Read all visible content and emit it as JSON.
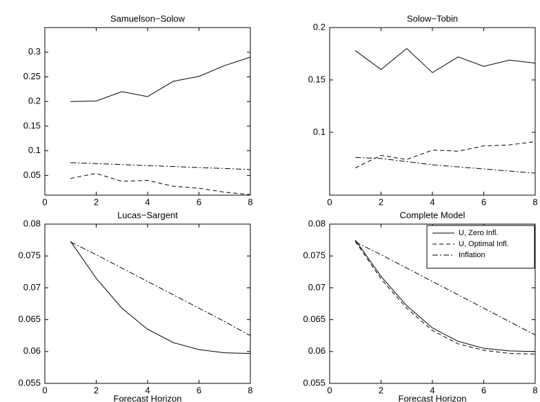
{
  "chart_data": [
    {
      "type": "line",
      "title": "Samuelson−Solow",
      "x": [
        1,
        2,
        3,
        4,
        5,
        6,
        7,
        8
      ],
      "xlim": [
        0,
        8
      ],
      "xticks": [
        0,
        2,
        4,
        6,
        8
      ],
      "ylim": [
        0.01,
        0.35
      ],
      "yticks": [
        0.05,
        0.1,
        0.15,
        0.2,
        0.25,
        0.3
      ],
      "series": [
        {
          "color": "#000000",
          "style": "solid",
          "values": [
            0.2,
            0.201,
            0.22,
            0.21,
            0.241,
            0.251,
            0.273,
            0.29
          ]
        },
        {
          "color": "#000000",
          "style": "dashed",
          "values": [
            0.044,
            0.054,
            0.038,
            0.04,
            0.028,
            0.024,
            0.016,
            0.011
          ]
        },
        {
          "color": "#000000",
          "style": "dashdot",
          "values": [
            0.076,
            0.074,
            0.072,
            0.07,
            0.068,
            0.066,
            0.064,
            0.062
          ]
        }
      ]
    },
    {
      "type": "line",
      "title": "Solow−Tobin",
      "x": [
        1,
        2,
        3,
        4,
        5,
        6,
        7,
        8
      ],
      "xlim": [
        0,
        8
      ],
      "xticks": [
        0,
        2,
        4,
        6,
        8
      ],
      "ylim": [
        0.04,
        0.2
      ],
      "yticks": [
        0.1,
        0.15,
        0.2
      ],
      "series": [
        {
          "color": "#000000",
          "style": "solid",
          "values": [
            0.178,
            0.16,
            0.18,
            0.157,
            0.172,
            0.163,
            0.169,
            0.166
          ]
        },
        {
          "color": "#000000",
          "style": "dashed",
          "values": [
            0.066,
            0.078,
            0.074,
            0.083,
            0.082,
            0.087,
            0.088,
            0.091
          ]
        },
        {
          "color": "#000000",
          "style": "dashdot",
          "values": [
            0.076,
            0.075,
            0.072,
            0.069,
            0.067,
            0.065,
            0.063,
            0.061
          ]
        }
      ]
    },
    {
      "type": "line",
      "title": "Lucas−Sargent",
      "xlabel": "Forecast Horizon",
      "x": [
        1,
        2,
        3,
        4,
        5,
        6,
        7,
        8
      ],
      "xlim": [
        0,
        8
      ],
      "xticks": [
        0,
        2,
        4,
        6,
        8
      ],
      "ylim": [
        0.055,
        0.08
      ],
      "yticks": [
        0.055,
        0.06,
        0.065,
        0.07,
        0.075,
        0.08
      ],
      "series": [
        {
          "color": "#000000",
          "style": "solid",
          "values": [
            0.0773,
            0.0715,
            0.0668,
            0.0635,
            0.0614,
            0.0603,
            0.0598,
            0.0597
          ]
        },
        {
          "color": "#000000",
          "style": "dashdot",
          "values": [
            0.0772,
            0.0752,
            0.0731,
            0.071,
            0.0689,
            0.0668,
            0.0647,
            0.0625
          ]
        }
      ]
    },
    {
      "type": "line",
      "title": "Complete Model",
      "xlabel": "Forecast Horizon",
      "x": [
        1,
        2,
        3,
        4,
        5,
        6,
        7,
        8
      ],
      "xlim": [
        0,
        8
      ],
      "xticks": [
        0,
        2,
        4,
        6,
        8
      ],
      "ylim": [
        0.055,
        0.08
      ],
      "yticks": [
        0.055,
        0.06,
        0.065,
        0.07,
        0.075,
        0.08
      ],
      "legend": "northeast",
      "series": [
        {
          "name": "U, Zero Infl.",
          "color": "#000000",
          "style": "solid",
          "values": [
            0.0775,
            0.0718,
            0.0672,
            0.0637,
            0.0616,
            0.0605,
            0.0601,
            0.06
          ]
        },
        {
          "name": "U, Optimal Infl.",
          "color": "#000000",
          "style": "dashed",
          "values": [
            0.0773,
            0.0714,
            0.0668,
            0.0633,
            0.0612,
            0.0602,
            0.0597,
            0.0596
          ]
        },
        {
          "name": "Inflation",
          "color": "#000000",
          "style": "dashdot",
          "values": [
            0.0772,
            0.0752,
            0.0731,
            0.071,
            0.0689,
            0.0668,
            0.0647,
            0.0626
          ]
        }
      ]
    }
  ]
}
